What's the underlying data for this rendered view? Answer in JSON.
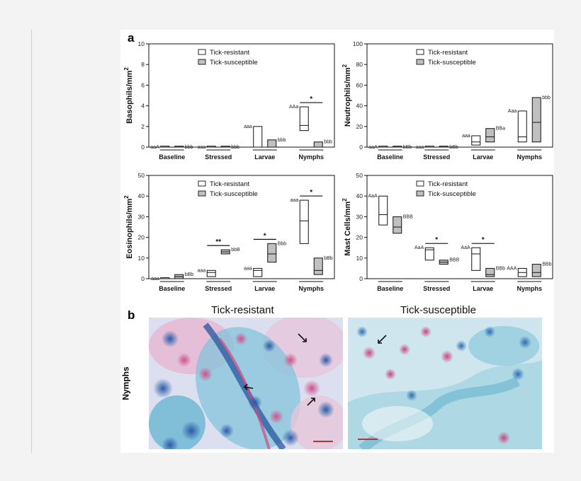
{
  "panel_a_label": "a",
  "panel_b_label": "b",
  "legend": [
    "Tick-resistant",
    "Tick-susceptible"
  ],
  "colors": {
    "resistant": "#ffffff",
    "susceptible": "#c0c0c0",
    "stroke": "#111111",
    "scalebar": "#c0303a"
  },
  "chart_data": [
    {
      "type": "box",
      "ylabel": "Basophils/mm",
      "ylabel_sup": "2",
      "ylim": [
        0,
        10
      ],
      "yticks": [
        0,
        2,
        4,
        6,
        8,
        10
      ],
      "categories": [
        "Baseline",
        "Stressed",
        "Larvae",
        "Nymphs"
      ],
      "series": [
        {
          "name": "Tick-resistant",
          "boxes": [
            [
              0,
              0,
              0
            ],
            [
              0,
              0,
              0
            ],
            [
              0,
              0,
              2
            ],
            [
              1.6,
              2.1,
              3.9
            ]
          ],
          "labels": [
            "aaA",
            "aaa",
            "aaa",
            "AAa"
          ]
        },
        {
          "name": "Tick-susceptible",
          "boxes": [
            [
              0,
              0,
              0
            ],
            [
              0,
              0,
              0
            ],
            [
              0,
              0,
              0.7
            ],
            [
              0,
              0,
              0.5
            ]
          ],
          "labels": [
            "bbb",
            "bbb",
            "bbb",
            "bbb"
          ]
        }
      ],
      "significance": [
        {
          "category": "Nymphs",
          "text": "*"
        }
      ]
    },
    {
      "type": "box",
      "ylabel": "Neutrophils/mm",
      "ylabel_sup": "2",
      "ylim": [
        0,
        100
      ],
      "yticks": [
        0,
        20,
        40,
        60,
        80,
        100
      ],
      "categories": [
        "Baseline",
        "Stressed",
        "Larvae",
        "Nymphs"
      ],
      "series": [
        {
          "name": "Tick-resistant",
          "boxes": [
            [
              0,
              0,
              0
            ],
            [
              0,
              0,
              0
            ],
            [
              2,
              5,
              11
            ],
            [
              5,
              10,
              35
            ]
          ],
          "labels": [
            "aaA",
            "aaa",
            "aaa",
            "Aaa"
          ]
        },
        {
          "name": "Tick-susceptible",
          "boxes": [
            [
              0,
              0,
              0
            ],
            [
              0,
              0,
              0
            ],
            [
              5,
              10,
              18
            ],
            [
              5,
              24,
              48
            ]
          ],
          "labels": [
            "bBb",
            "bBb",
            "BBa",
            "bbb"
          ]
        }
      ],
      "significance": []
    },
    {
      "type": "box",
      "ylabel": "Eosinophils/mm",
      "ylabel_sup": "2",
      "ylim": [
        0,
        50
      ],
      "yticks": [
        0,
        10,
        20,
        30,
        40,
        50
      ],
      "categories": [
        "Baseline",
        "Stressed",
        "Larvae",
        "Nymphs"
      ],
      "series": [
        {
          "name": "Tick-resistant",
          "boxes": [
            [
              0,
              0,
              0
            ],
            [
              1,
              3,
              4
            ],
            [
              1,
              4,
              5
            ],
            [
              17,
              28,
              38
            ]
          ],
          "labels": [
            "aaa",
            "aaa",
            "aaa",
            "aaa"
          ]
        },
        {
          "name": "Tick-susceptible",
          "boxes": [
            [
              0,
              1,
              2
            ],
            [
              12,
              13,
              14
            ],
            [
              8,
              12,
              17
            ],
            [
              2,
              4,
              10
            ]
          ],
          "labels": [
            "bBb",
            "bbB",
            "Bbb",
            "bBb"
          ]
        }
      ],
      "significance": [
        {
          "category": "Stressed",
          "text": "**"
        },
        {
          "category": "Larvae",
          "text": "*"
        },
        {
          "category": "Nymphs",
          "text": "*"
        }
      ]
    },
    {
      "type": "box",
      "ylabel": "Mast Cells/mm",
      "ylabel_sup": "2",
      "ylim": [
        0,
        50
      ],
      "yticks": [
        0,
        10,
        20,
        30,
        40,
        50
      ],
      "categories": [
        "Baseline",
        "Stressed",
        "Larvae",
        "Nymphs"
      ],
      "series": [
        {
          "name": "Tick-resistant",
          "boxes": [
            [
              26,
              31,
              40
            ],
            [
              9,
              14,
              15
            ],
            [
              4,
              12,
              15
            ],
            [
              1,
              3,
              5
            ]
          ],
          "labels": [
            "AaA",
            "AaA",
            "AaA",
            "AAA"
          ]
        },
        {
          "name": "Tick-susceptible",
          "boxes": [
            [
              22,
              25,
              30
            ],
            [
              7,
              8,
              9
            ],
            [
              1,
              2,
              5
            ],
            [
              1,
              3,
              7
            ]
          ],
          "labels": [
            "BBB",
            "BBB",
            "BBb",
            "BBb"
          ]
        }
      ],
      "significance": [
        {
          "category": "Stressed",
          "text": "*"
        },
        {
          "category": "Larvae",
          "text": "*"
        }
      ]
    }
  ],
  "micrographs": {
    "row_label": "Nymphs",
    "left_title": "Tick-resistant",
    "right_title": "Tick-susceptible"
  }
}
